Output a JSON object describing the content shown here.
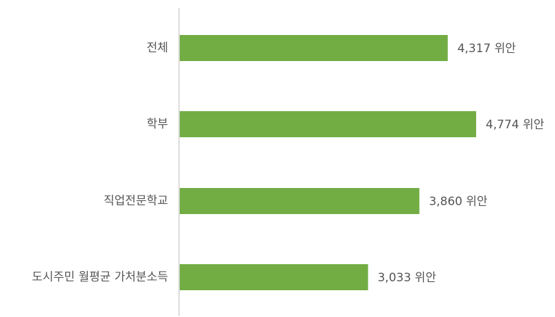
{
  "chart_data": {
    "type": "bar",
    "orientation": "horizontal",
    "categories": [
      "전체",
      "학부",
      "직업전문학교",
      "도시주민 월평균 가처분소득"
    ],
    "values": [
      4317,
      4774,
      3860,
      3033
    ],
    "value_labels": [
      "4,317 위안",
      "4,774 위안",
      "3,860 위안",
      "3,033 위안"
    ],
    "unit": "위안",
    "title": "",
    "xlabel": "",
    "ylabel": "",
    "xlim": [
      0,
      5200
    ],
    "grid": false,
    "legend": "none",
    "bar_color": "#72ad44",
    "axis_color": "#cfcfcf",
    "label_color": "#555555"
  }
}
